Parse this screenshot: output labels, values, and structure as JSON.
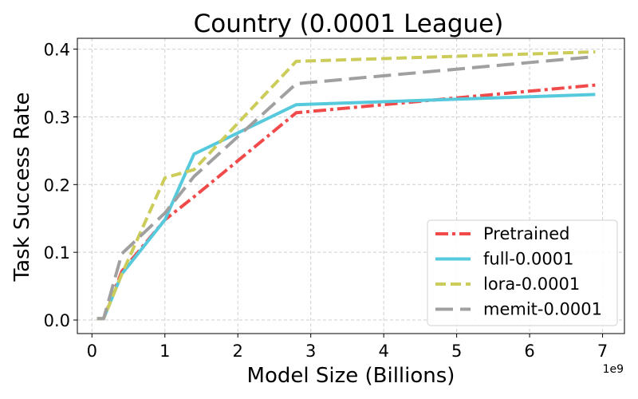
{
  "chart_data": {
    "type": "line",
    "title": "Country (0.0001 League)",
    "xlabel": "Model Size (Billions)",
    "ylabel": "Task Success Rate",
    "x_offset_label": "1e9",
    "xlim": [
      -0.2,
      7.3
    ],
    "ylim": [
      -0.02,
      0.416
    ],
    "xticks": [
      0,
      1,
      2,
      3,
      4,
      5,
      6,
      7
    ],
    "yticks": [
      0.0,
      0.1,
      0.2,
      0.3,
      0.4
    ],
    "xtick_labels": [
      "0",
      "1",
      "2",
      "3",
      "4",
      "5",
      "6",
      "7"
    ],
    "ytick_labels": [
      "0.0",
      "0.1",
      "0.2",
      "0.3",
      "0.4"
    ],
    "grid": true,
    "legend_position": "lower-right",
    "x": [
      0.07,
      0.16,
      0.41,
      1.0,
      1.4,
      2.8,
      6.9
    ],
    "series": [
      {
        "name": "Pretrained",
        "color": "#f04a4a",
        "style": "dashdot",
        "values": [
          0.002,
          0.002,
          0.072,
          0.148,
          0.182,
          0.306,
          0.347
        ]
      },
      {
        "name": "full-0.0001",
        "color": "#56cadc",
        "style": "solid",
        "values": [
          0.002,
          0.002,
          0.068,
          0.148,
          0.245,
          0.318,
          0.333
        ]
      },
      {
        "name": "lora-0.0001",
        "color": "#cccc5a",
        "style": "dashed",
        "values": [
          0.002,
          0.002,
          0.068,
          0.21,
          0.222,
          0.382,
          0.396
        ]
      },
      {
        "name": "memit-0.0001",
        "color": "#a0a0a0",
        "style": "longdash",
        "values": [
          0.002,
          0.002,
          0.098,
          0.158,
          0.212,
          0.349,
          0.389
        ]
      }
    ]
  }
}
